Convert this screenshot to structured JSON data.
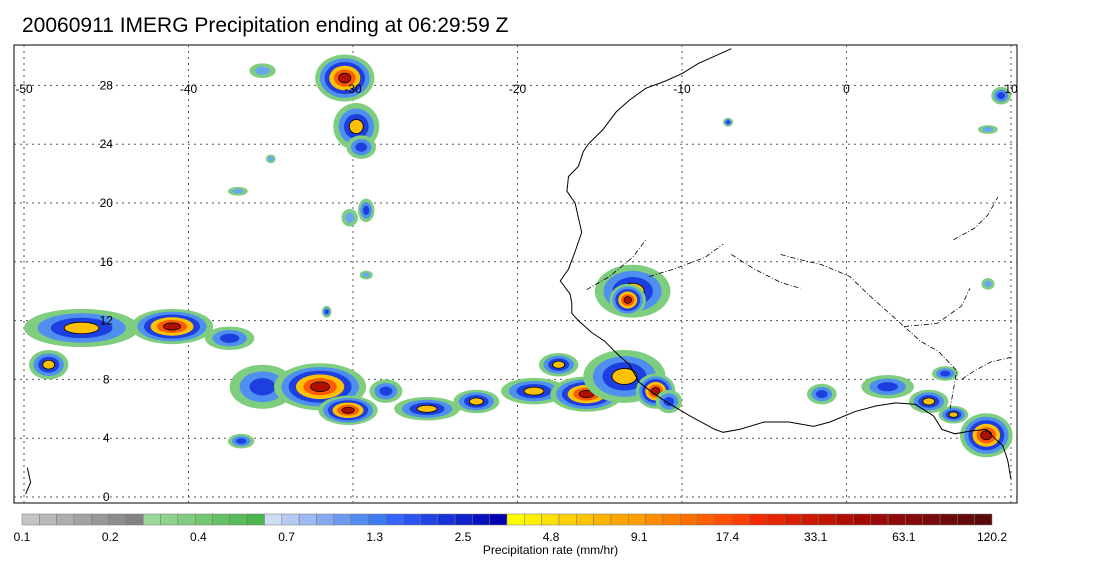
{
  "title": "20060911 IMERG Precipitation ending at 06:29:59 Z",
  "map": {
    "lon_ticks": [
      "-50",
      "-40",
      "-30",
      "-20",
      "-10",
      "0",
      "10"
    ],
    "lat_ticks": [
      "28",
      "24",
      "20",
      "16",
      "12",
      "8",
      "4",
      "0"
    ],
    "lon_range": [
      -50,
      10
    ],
    "lat_range": [
      -0.5,
      30
    ]
  },
  "colorbar": {
    "label": "Precipitation rate (mm/hr)",
    "tick_labels": [
      "0.1",
      "0.2",
      "0.4",
      "0.7",
      "1.3",
      "2.5",
      "4.8",
      "9.1",
      "17.4",
      "33.1",
      "63.1",
      "120.2"
    ],
    "colors": [
      "#c4c4c4",
      "#b9b9b9",
      "#aeaeae",
      "#a3a3a3",
      "#989898",
      "#8d8d8d",
      "#828282",
      "#9bd99b",
      "#8dd38d",
      "#80cd80",
      "#73c773",
      "#66c166",
      "#59bb59",
      "#4cb54c",
      "#cfdcf5",
      "#b6caf3",
      "#9dbaf3",
      "#85aaf2",
      "#6d9af1",
      "#558af0",
      "#3d7aef",
      "#3366ff",
      "#2a55f2",
      "#2044e5",
      "#1733d8",
      "#0e22cb",
      "#0611be",
      "#0000b0",
      "#ffff00",
      "#fff000",
      "#ffe100",
      "#ffd200",
      "#ffc300",
      "#ffb400",
      "#ffa500",
      "#ff9f00",
      "#ff8f00",
      "#ff7f00",
      "#ff6f00",
      "#ff5f00",
      "#ff4f00",
      "#ff3f00",
      "#f22c00",
      "#e52600",
      "#d82000",
      "#cc1a00",
      "#bf1400",
      "#b20e00",
      "#a50800",
      "#9a0a0a",
      "#8f0a0a",
      "#840a0a",
      "#790a0a",
      "#6e0a0a",
      "#630a0a",
      "#580a0a"
    ]
  },
  "rain_cells": [
    {
      "lon": -30.5,
      "lat": 28.5,
      "rx": 1.8,
      "ry": 1.6,
      "level": 3
    },
    {
      "lon": -29.8,
      "lat": 25.2,
      "rx": 1.4,
      "ry": 1.6,
      "level": 2
    },
    {
      "lon": -29.5,
      "lat": 23.8,
      "rx": 0.9,
      "ry": 0.8,
      "level": 1
    },
    {
      "lon": -35.5,
      "lat": 29.0,
      "rx": 0.8,
      "ry": 0.5,
      "level": 0
    },
    {
      "lon": -29.2,
      "lat": 19.5,
      "rx": 0.5,
      "ry": 0.8,
      "level": 1
    },
    {
      "lon": -30.2,
      "lat": 19.0,
      "rx": 0.5,
      "ry": 0.6,
      "level": 0
    },
    {
      "lon": -46.5,
      "lat": 11.5,
      "rx": 3.5,
      "ry": 1.3,
      "level": 2
    },
    {
      "lon": -41.0,
      "lat": 11.6,
      "rx": 2.5,
      "ry": 1.2,
      "level": 3
    },
    {
      "lon": -37.5,
      "lat": 10.8,
      "rx": 1.5,
      "ry": 0.8,
      "level": 1
    },
    {
      "lon": -48.5,
      "lat": 9.0,
      "rx": 1.2,
      "ry": 1.0,
      "level": 2
    },
    {
      "lon": -35.5,
      "lat": 7.5,
      "rx": 2.0,
      "ry": 1.5,
      "level": 1
    },
    {
      "lon": -32.0,
      "lat": 7.5,
      "rx": 2.8,
      "ry": 1.6,
      "level": 3
    },
    {
      "lon": -30.3,
      "lat": 5.9,
      "rx": 1.8,
      "ry": 1.0,
      "level": 3
    },
    {
      "lon": -36.8,
      "lat": 3.8,
      "rx": 0.8,
      "ry": 0.5,
      "level": 1
    },
    {
      "lon": -28.0,
      "lat": 7.2,
      "rx": 1.0,
      "ry": 0.8,
      "level": 1
    },
    {
      "lon": -25.5,
      "lat": 6.0,
      "rx": 2.0,
      "ry": 0.8,
      "level": 2
    },
    {
      "lon": -22.5,
      "lat": 6.5,
      "rx": 1.4,
      "ry": 0.8,
      "level": 2
    },
    {
      "lon": -19.0,
      "lat": 7.2,
      "rx": 2.0,
      "ry": 0.9,
      "level": 2
    },
    {
      "lon": -17.5,
      "lat": 9.0,
      "rx": 1.2,
      "ry": 0.8,
      "level": 2
    },
    {
      "lon": -15.8,
      "lat": 7.0,
      "rx": 2.2,
      "ry": 1.2,
      "level": 3
    },
    {
      "lon": -13.5,
      "lat": 8.2,
      "rx": 2.5,
      "ry": 1.8,
      "level": 2
    },
    {
      "lon": -11.6,
      "lat": 7.2,
      "rx": 1.2,
      "ry": 1.2,
      "level": 3
    },
    {
      "lon": -10.8,
      "lat": 6.5,
      "rx": 0.8,
      "ry": 0.8,
      "level": 1
    },
    {
      "lon": -13.0,
      "lat": 14.0,
      "rx": 2.3,
      "ry": 1.8,
      "level": 2
    },
    {
      "lon": -13.3,
      "lat": 13.4,
      "rx": 1.1,
      "ry": 1.1,
      "level": 3
    },
    {
      "lon": -1.5,
      "lat": 7.0,
      "rx": 0.9,
      "ry": 0.7,
      "level": 1
    },
    {
      "lon": 2.5,
      "lat": 7.5,
      "rx": 1.6,
      "ry": 0.8,
      "level": 1
    },
    {
      "lon": 5.0,
      "lat": 6.5,
      "rx": 1.2,
      "ry": 0.8,
      "level": 2
    },
    {
      "lon": 6.0,
      "lat": 8.4,
      "rx": 0.8,
      "ry": 0.5,
      "level": 1
    },
    {
      "lon": 8.5,
      "lat": 4.2,
      "rx": 1.6,
      "ry": 1.5,
      "level": 3
    },
    {
      "lon": 6.5,
      "lat": 5.6,
      "rx": 0.9,
      "ry": 0.6,
      "level": 2
    },
    {
      "lon": 9.4,
      "lat": 27.3,
      "rx": 0.6,
      "ry": 0.6,
      "level": 1
    },
    {
      "lon": 8.6,
      "lat": 25.0,
      "rx": 0.6,
      "ry": 0.3,
      "level": 0
    },
    {
      "lon": 8.6,
      "lat": 14.5,
      "rx": 0.4,
      "ry": 0.4,
      "level": 0
    },
    {
      "lon": -7.2,
      "lat": 25.5,
      "rx": 0.3,
      "ry": 0.3,
      "level": 1
    },
    {
      "lon": -29.2,
      "lat": 15.1,
      "rx": 0.4,
      "ry": 0.3,
      "level": 0
    },
    {
      "lon": -31.6,
      "lat": 12.6,
      "rx": 0.3,
      "ry": 0.4,
      "level": 1
    },
    {
      "lon": -37.0,
      "lat": 20.8,
      "rx": 0.6,
      "ry": 0.3,
      "level": 0
    },
    {
      "lon": -35.0,
      "lat": 23.0,
      "rx": 0.3,
      "ry": 0.3,
      "level": 0
    }
  ],
  "coastlines": [
    [
      [
        -7.0,
        30.5
      ],
      [
        -9.0,
        29.5
      ],
      [
        -10.0,
        28.8
      ],
      [
        -11.0,
        28.3
      ],
      [
        -12.2,
        27.8
      ],
      [
        -13.2,
        27.0
      ],
      [
        -14.0,
        26.2
      ],
      [
        -14.8,
        25.0
      ],
      [
        -15.7,
        24.0
      ],
      [
        -16.0,
        23.5
      ],
      [
        -16.3,
        22.5
      ],
      [
        -16.9,
        21.8
      ],
      [
        -17.0,
        20.8
      ],
      [
        -16.5,
        20.0
      ],
      [
        -16.3,
        19.0
      ],
      [
        -16.1,
        18.0
      ],
      [
        -16.5,
        16.7
      ],
      [
        -16.9,
        15.5
      ],
      [
        -17.4,
        14.7
      ],
      [
        -16.8,
        13.8
      ],
      [
        -16.7,
        13.2
      ],
      [
        -16.7,
        12.5
      ],
      [
        -16.3,
        12.0
      ],
      [
        -15.5,
        11.2
      ],
      [
        -14.7,
        10.6
      ],
      [
        -14.0,
        9.8
      ],
      [
        -13.2,
        9.0
      ],
      [
        -12.6,
        7.8
      ],
      [
        -11.8,
        7.1
      ],
      [
        -11.0,
        6.5
      ],
      [
        -9.5,
        5.5
      ],
      [
        -8.0,
        4.6
      ],
      [
        -7.5,
        4.4
      ],
      [
        -6.5,
        4.6
      ],
      [
        -5.0,
        5.1
      ],
      [
        -3.5,
        5.1
      ],
      [
        -2.0,
        4.8
      ],
      [
        -1.0,
        5.1
      ],
      [
        0.5,
        5.8
      ],
      [
        1.8,
        6.2
      ],
      [
        3.0,
        6.4
      ],
      [
        4.2,
        6.3
      ],
      [
        5.3,
        5.5
      ],
      [
        5.8,
        4.6
      ],
      [
        6.6,
        4.3
      ],
      [
        7.6,
        4.5
      ],
      [
        8.5,
        4.6
      ],
      [
        9.0,
        4.0
      ],
      [
        9.5,
        3.5
      ],
      [
        9.8,
        2.5
      ],
      [
        10.0,
        1.2
      ]
    ],
    [
      [
        -49.8,
        2.0
      ],
      [
        -49.6,
        1.0
      ],
      [
        -49.9,
        0.2
      ]
    ]
  ],
  "rivers": [
    [
      [
        -4.0,
        16.5
      ],
      [
        -3.0,
        16.2
      ],
      [
        -1.5,
        15.8
      ],
      [
        0.2,
        15.0
      ],
      [
        1.3,
        13.8
      ],
      [
        2.3,
        12.8
      ],
      [
        3.5,
        11.6
      ],
      [
        4.5,
        10.6
      ],
      [
        5.6,
        9.9
      ],
      [
        6.7,
        8.6
      ],
      [
        6.3,
        6.0
      ]
    ],
    [
      [
        7.0,
        8.0
      ],
      [
        7.8,
        8.6
      ],
      [
        8.8,
        9.2
      ],
      [
        10.0,
        9.5
      ]
    ],
    [
      [
        3.5,
        11.6
      ],
      [
        5.5,
        11.8
      ],
      [
        7.0,
        13.0
      ],
      [
        7.5,
        14.2
      ]
    ],
    [
      [
        6.5,
        17.5
      ],
      [
        7.8,
        18.3
      ],
      [
        8.6,
        19.2
      ],
      [
        9.2,
        20.4
      ]
    ],
    [
      [
        -7.0,
        16.5
      ],
      [
        -5.6,
        15.5
      ],
      [
        -4.0,
        14.6
      ],
      [
        -2.8,
        14.2
      ]
    ],
    [
      [
        -12.0,
        15.0
      ],
      [
        -10.5,
        15.5
      ],
      [
        -8.6,
        16.3
      ],
      [
        -7.5,
        17.2
      ]
    ],
    [
      [
        -15.8,
        14.1
      ],
      [
        -14.4,
        15.0
      ],
      [
        -13.0,
        16.3
      ],
      [
        -12.2,
        17.5
      ]
    ]
  ]
}
